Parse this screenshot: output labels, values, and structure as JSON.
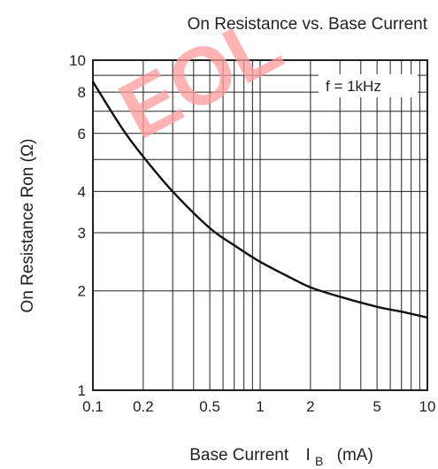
{
  "chart_data": {
    "type": "line",
    "title": "On Resistance vs. Base Current",
    "xlabel_main": "Base Current",
    "xlabel_symbol": "I",
    "xlabel_subscript": "B",
    "xlabel_unit": "(mA)",
    "ylabel": "On Resistance  Ron  (Ω)",
    "x_scale": "log",
    "y_scale": "log",
    "xlim": [
      0.1,
      10
    ],
    "ylim": [
      1,
      10
    ],
    "x_ticks": [
      {
        "value": 0.1,
        "label": "0.1"
      },
      {
        "value": 0.2,
        "label": "0.2"
      },
      {
        "value": 0.5,
        "label": "0.5"
      },
      {
        "value": 1,
        "label": "1"
      },
      {
        "value": 2,
        "label": "2"
      },
      {
        "value": 5,
        "label": "5"
      },
      {
        "value": 10,
        "label": "10"
      }
    ],
    "y_ticks": [
      {
        "value": 1,
        "label": "1"
      },
      {
        "value": 2,
        "label": "2"
      },
      {
        "value": 3,
        "label": "3"
      },
      {
        "value": 4,
        "label": "4"
      },
      {
        "value": 6,
        "label": "6"
      },
      {
        "value": 8,
        "label": "8"
      },
      {
        "value": 10,
        "label": "10"
      }
    ],
    "grid": true,
    "annotation": "f  = 1kHz",
    "series": [
      {
        "x": [
          0.1,
          0.15,
          0.2,
          0.3,
          0.5,
          0.7,
          1,
          1.5,
          2,
          3,
          5,
          7,
          10
        ],
        "y": [
          8.6,
          6.2,
          5.1,
          4.0,
          3.1,
          2.75,
          2.45,
          2.2,
          2.05,
          1.92,
          1.79,
          1.73,
          1.66
        ]
      }
    ]
  },
  "watermark": "EOL"
}
